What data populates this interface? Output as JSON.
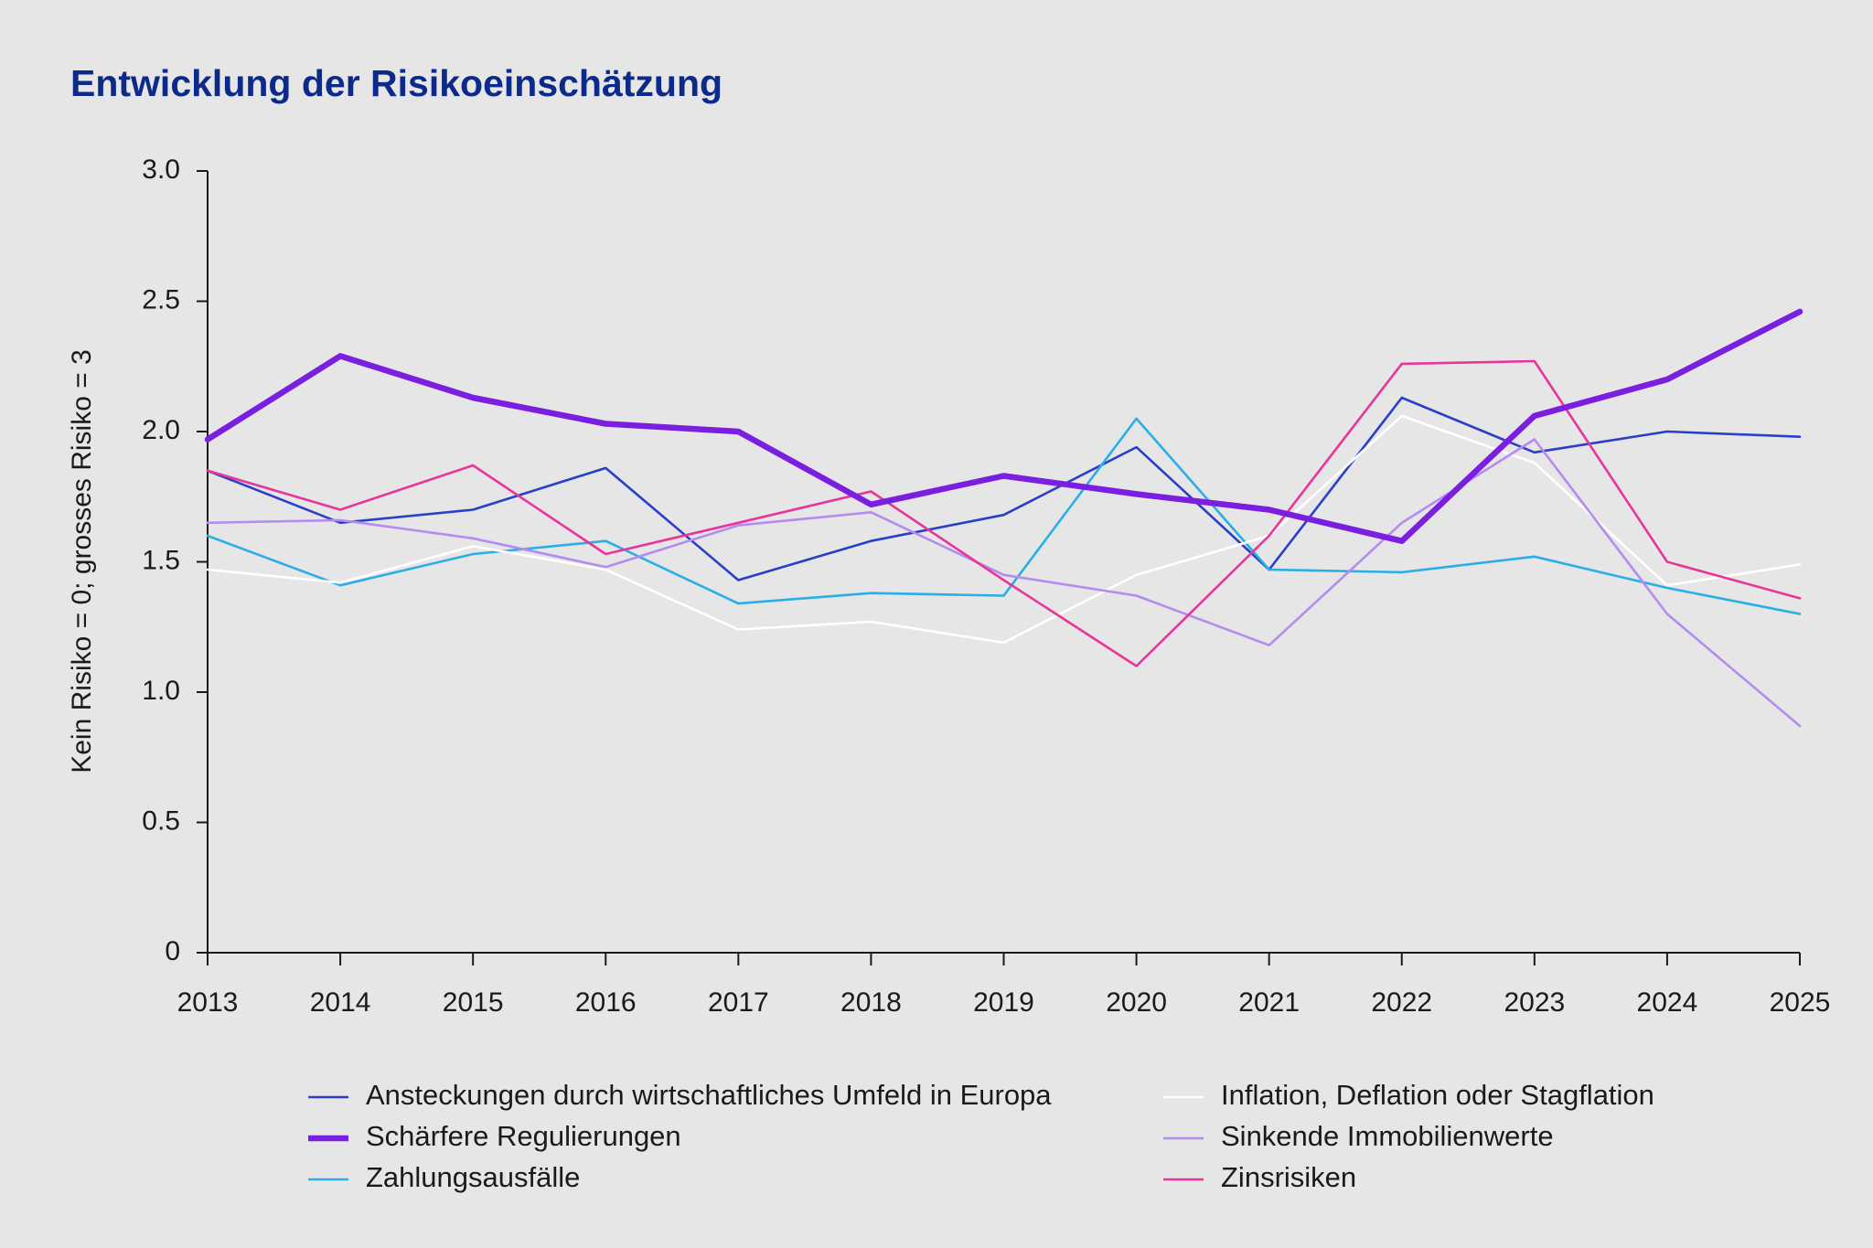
{
  "chart_data": {
    "type": "line",
    "title": "Entwicklung der Risikoeinschätzung",
    "y_label": "Kein Risiko = 0; grosses Risiko = 3",
    "categories": [
      "2013",
      "2014",
      "2015",
      "2016",
      "2017",
      "2018",
      "2019",
      "2020",
      "2021",
      "2022",
      "2023",
      "2024",
      "2025"
    ],
    "ylim": [
      0,
      3
    ],
    "yticks": [
      0,
      0.5,
      {
        "value": 1,
        "label": "1.0"
      },
      1.5,
      {
        "value": 2,
        "label": "2.0"
      },
      2.5,
      {
        "value": 3,
        "label": "3.0"
      }
    ],
    "grid": false,
    "legend": "bottom",
    "series": [
      {
        "name": "Ansteckungen durch wirtschaftliches Umfeld in Europa",
        "color": "#2a3fc8",
        "linewidth": 2.6,
        "values": [
          1.85,
          1.65,
          1.7,
          1.86,
          1.43,
          1.58,
          1.68,
          1.94,
          1.47,
          2.13,
          1.92,
          2.0,
          1.98
        ]
      },
      {
        "name": "Schärfere Regulierungen",
        "color": "#7a1fe0",
        "linewidth": 6.5,
        "values": [
          1.97,
          2.29,
          2.13,
          2.03,
          2.0,
          1.72,
          1.83,
          1.76,
          1.7,
          1.58,
          2.06,
          2.2,
          2.46
        ]
      },
      {
        "name": "Zahlungsausfälle",
        "color": "#2aaee8",
        "linewidth": 2.6,
        "values": [
          1.6,
          1.41,
          1.53,
          1.58,
          1.34,
          1.38,
          1.37,
          2.05,
          1.47,
          1.46,
          1.52,
          1.4,
          1.3
        ]
      },
      {
        "name": "Inflation, Deflation oder Stagflation",
        "color": "#ffffff",
        "linewidth": 2.6,
        "values": [
          1.47,
          1.42,
          1.56,
          1.47,
          1.24,
          1.27,
          1.19,
          1.45,
          1.6,
          2.06,
          1.88,
          1.41,
          1.49
        ]
      },
      {
        "name": "Sinkende Immobilienwerte",
        "color": "#b48cf0",
        "linewidth": 2.6,
        "values": [
          1.65,
          1.66,
          1.59,
          1.48,
          1.64,
          1.69,
          1.45,
          1.37,
          1.18,
          1.65,
          1.97,
          1.3,
          0.87
        ]
      },
      {
        "name": "Zinsrisiken",
        "color": "#e8359a",
        "linewidth": 2.6,
        "values": [
          1.85,
          1.7,
          1.87,
          1.53,
          1.65,
          1.77,
          1.43,
          1.1,
          1.6,
          2.26,
          2.27,
          1.5,
          1.36
        ]
      }
    ]
  }
}
